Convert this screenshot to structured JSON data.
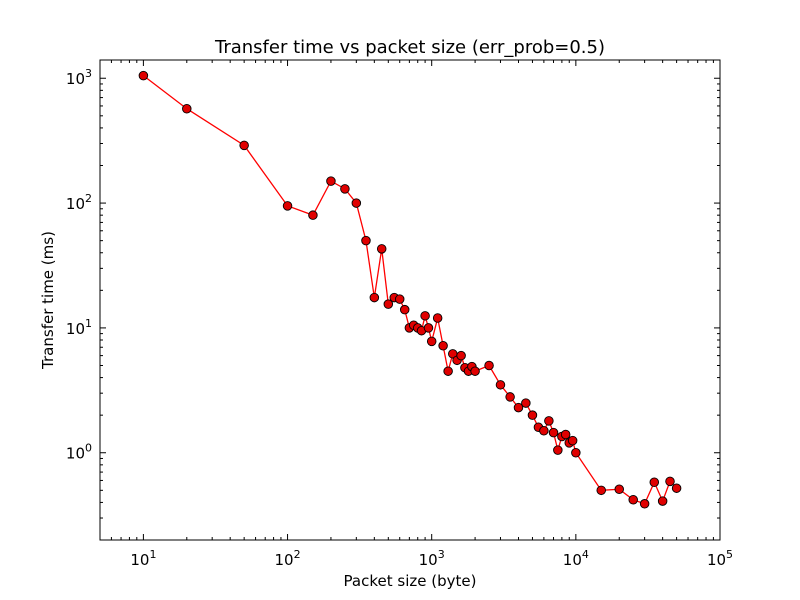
{
  "chart_data": {
    "type": "line",
    "title": "Transfer time vs packet size (err_prob=0.5)",
    "xlabel": "Packet size (byte)",
    "ylabel": "Transfer time (ms)",
    "x_scale": "log",
    "y_scale": "log",
    "xlim": [
      5,
      100000
    ],
    "ylim": [
      0.2,
      1400
    ],
    "x_ticks": [
      {
        "base": "10",
        "exp": "1",
        "value": 10
      },
      {
        "base": "10",
        "exp": "2",
        "value": 100
      },
      {
        "base": "10",
        "exp": "3",
        "value": 1000
      },
      {
        "base": "10",
        "exp": "4",
        "value": 10000
      },
      {
        "base": "10",
        "exp": "5",
        "value": 100000
      }
    ],
    "y_ticks": [
      {
        "base": "10",
        "exp": "0",
        "value": 1
      },
      {
        "base": "10",
        "exp": "1",
        "value": 10
      },
      {
        "base": "10",
        "exp": "2",
        "value": 100
      },
      {
        "base": "10",
        "exp": "3",
        "value": 1000
      }
    ],
    "grid": false,
    "legend": false,
    "color": "#ff0000",
    "marker_color": "#e00000",
    "series": [
      {
        "x": [
          10,
          20,
          50,
          100,
          150,
          200,
          250,
          300,
          350,
          400,
          450,
          500,
          550,
          600,
          650,
          700,
          750,
          800,
          850,
          900,
          950,
          1000,
          1100,
          1200,
          1300,
          1400,
          1500,
          1600,
          1700,
          1800,
          1900,
          2000,
          2500,
          3000,
          3500,
          4000,
          4500,
          5000,
          5500,
          6000,
          6500,
          7000,
          7500,
          8000,
          8500,
          9000,
          9500,
          10000,
          15000,
          20000,
          25000,
          30000,
          35000,
          40000,
          45000,
          50000
        ],
        "y": [
          1050,
          570,
          290,
          95,
          80,
          150,
          130,
          100,
          50,
          17.5,
          43,
          15.5,
          17.5,
          17,
          14,
          10,
          10.5,
          10,
          9.5,
          12.5,
          10,
          7.8,
          12,
          7.2,
          4.5,
          6.2,
          5.5,
          6,
          4.8,
          4.5,
          4.9,
          4.5,
          5,
          3.5,
          2.8,
          2.3,
          2.5,
          2,
          1.6,
          1.5,
          1.8,
          1.45,
          1.05,
          1.35,
          1.4,
          1.2,
          1.25,
          1.0,
          0.5,
          0.51,
          0.42,
          0.39,
          0.58,
          0.41,
          0.59,
          0.52
        ]
      }
    ]
  }
}
